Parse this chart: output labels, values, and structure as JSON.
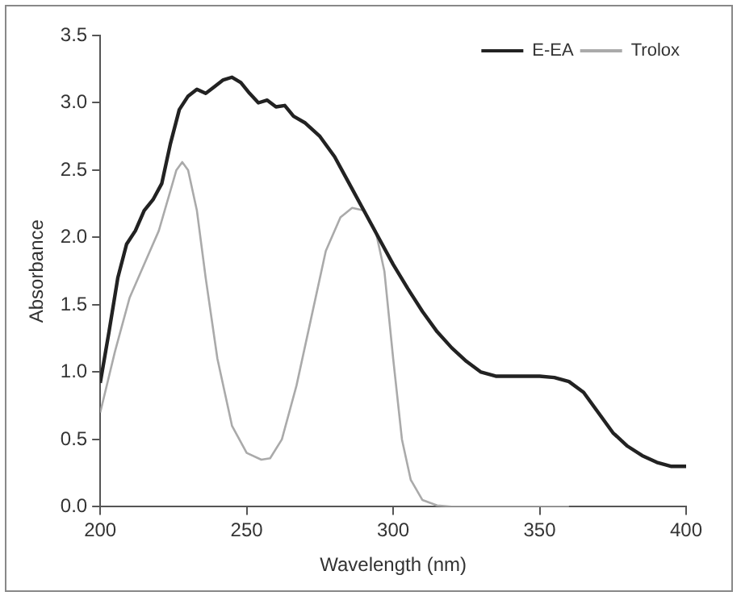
{
  "chart_data": {
    "type": "line",
    "xlabel": "Wavelength (nm)",
    "ylabel": "Absorbance",
    "xlim": [
      200,
      400
    ],
    "xticks": [
      200,
      250,
      300,
      350,
      400
    ],
    "ylim": [
      0,
      3.5
    ],
    "yticks": [
      {
        "value": 0,
        "label": "0.0"
      },
      0.5,
      {
        "value": 1,
        "label": "1.0"
      },
      1.5,
      {
        "value": 2,
        "label": "2.0"
      },
      2.5,
      {
        "value": 3,
        "label": "3.0"
      },
      3.5
    ],
    "grid": false,
    "legend": "top right",
    "marker": "none",
    "line_style": "solid",
    "series": [
      {
        "name": "E-EA",
        "color": "#222222",
        "x": [
          200,
          203,
          206,
          209,
          212,
          215,
          218,
          221,
          224,
          227,
          230,
          233,
          236,
          239,
          242,
          245,
          248,
          251,
          254,
          257,
          260,
          263,
          266,
          270,
          275,
          280,
          285,
          290,
          295,
          300,
          305,
          310,
          315,
          320,
          325,
          330,
          335,
          340,
          345,
          350,
          355,
          360,
          365,
          370,
          375,
          380,
          385,
          390,
          395,
          400
        ],
        "values": [
          0.92,
          1.3,
          1.7,
          1.95,
          2.05,
          2.2,
          2.28,
          2.4,
          2.7,
          2.95,
          3.05,
          3.1,
          3.07,
          3.12,
          3.17,
          3.19,
          3.15,
          3.07,
          3.0,
          3.02,
          2.97,
          2.98,
          2.9,
          2.85,
          2.75,
          2.6,
          2.4,
          2.2,
          2.0,
          1.8,
          1.62,
          1.45,
          1.3,
          1.18,
          1.08,
          1.0,
          0.97,
          0.97,
          0.97,
          0.97,
          0.96,
          0.93,
          0.85,
          0.7,
          0.55,
          0.45,
          0.38,
          0.33,
          0.3,
          0.3
        ]
      },
      {
        "name": "Trolox",
        "color": "#aaaaaa",
        "x": [
          200,
          205,
          210,
          215,
          220,
          224,
          226,
          228,
          230,
          233,
          236,
          240,
          245,
          250,
          255,
          258,
          262,
          267,
          272,
          277,
          282,
          286,
          290,
          294,
          297,
          300,
          303,
          306,
          310,
          315,
          320,
          330,
          350,
          360
        ],
        "values": [
          0.7,
          1.15,
          1.55,
          1.8,
          2.05,
          2.35,
          2.5,
          2.56,
          2.5,
          2.2,
          1.7,
          1.1,
          0.6,
          0.4,
          0.35,
          0.36,
          0.5,
          0.9,
          1.4,
          1.9,
          2.15,
          2.22,
          2.2,
          2.05,
          1.75,
          1.1,
          0.5,
          0.2,
          0.05,
          0.01,
          0,
          0,
          0,
          0
        ]
      }
    ]
  }
}
